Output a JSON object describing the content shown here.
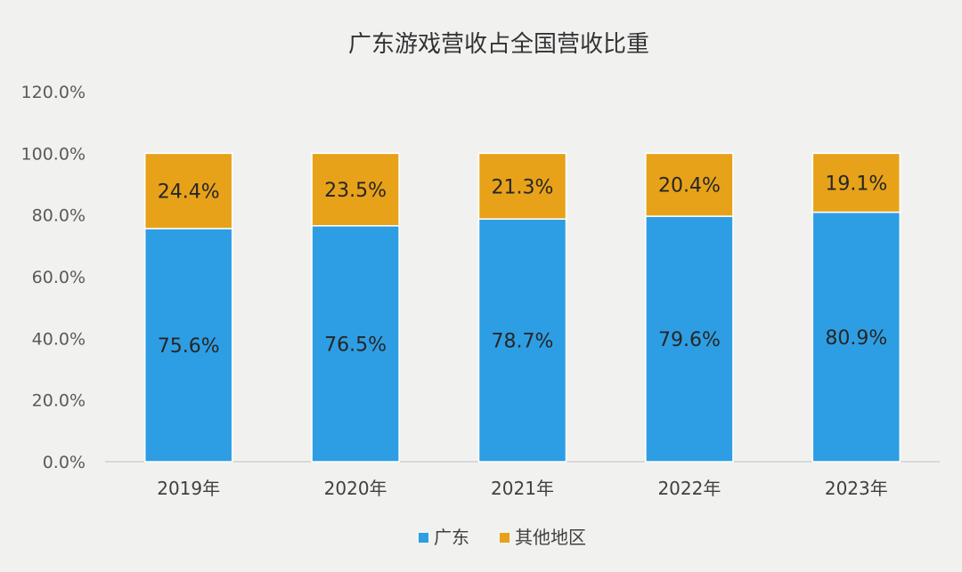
{
  "chart_data": {
    "type": "bar",
    "stacked": true,
    "title": "广东游戏营收占全国营收比重",
    "categories": [
      "2019年",
      "2020年",
      "2021年",
      "2022年",
      "2023年"
    ],
    "series": [
      {
        "name": "广东",
        "color": "#2e9ee4",
        "values": [
          75.6,
          76.5,
          78.7,
          79.6,
          80.9
        ],
        "labels": [
          "75.6%",
          "76.5%",
          "78.7%",
          "79.6%",
          "80.9%"
        ]
      },
      {
        "name": "其他地区",
        "color": "#e7a21a",
        "values": [
          24.4,
          23.5,
          21.3,
          20.4,
          19.1
        ],
        "labels": [
          "24.4%",
          "23.5%",
          "21.3%",
          "20.4%",
          "19.1%"
        ]
      }
    ],
    "ylim": [
      0,
      120
    ],
    "yticks": [
      0,
      20,
      40,
      60,
      80,
      100,
      120
    ],
    "ytick_labels": [
      "0.0%",
      "20.0%",
      "40.0%",
      "60.0%",
      "80.0%",
      "100.0%",
      "120.0%"
    ],
    "grid": false,
    "legend_position": "bottom"
  }
}
